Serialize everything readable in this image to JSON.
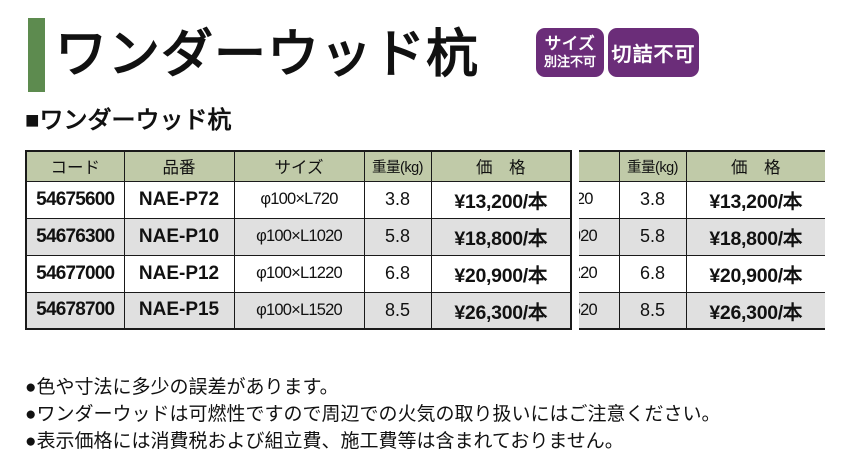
{
  "title": "ワンダーウッド杭",
  "badges": [
    {
      "name": "size-custom-order-not-available",
      "lines": [
        "サイズ",
        "別注不可"
      ]
    },
    {
      "name": "cutting-not-available",
      "lines": [
        "切詰不可"
      ]
    }
  ],
  "section_heading": "■ワンダーウッド杭",
  "table": {
    "headers": [
      "コード",
      "品番",
      "サイズ",
      "重量(kg)",
      "価　格"
    ],
    "rows": [
      {
        "code": "54675600",
        "model": "NAE-P72",
        "size": "φ100×L720",
        "weight": "3.8",
        "price": "¥13,200/本"
      },
      {
        "code": "54676300",
        "model": "NAE-P10",
        "size": "φ100×L1020",
        "weight": "5.8",
        "price": "¥18,800/本"
      },
      {
        "code": "54677000",
        "model": "NAE-P12",
        "size": "φ100×L1220",
        "weight": "6.8",
        "price": "¥20,900/本"
      },
      {
        "code": "54678700",
        "model": "NAE-P15",
        "size": "φ100×L1520",
        "weight": "8.5",
        "price": "¥26,300/本"
      }
    ]
  },
  "notes": [
    "●色や寸法に多少の誤差があります。",
    "●ワンダーウッドは可燃性ですので周辺での火気の取り扱いにはご注意ください。",
    "●表示価格には消費税および組立費、施工費等は含まれておりません。"
  ],
  "colors": {
    "accent_green": "#5d8b4f",
    "badge_purple": "#6b2d79",
    "table_header_bg": "#c0caa8",
    "row_alt_bg": "#e0e0e0",
    "border": "#1a1a1a"
  }
}
